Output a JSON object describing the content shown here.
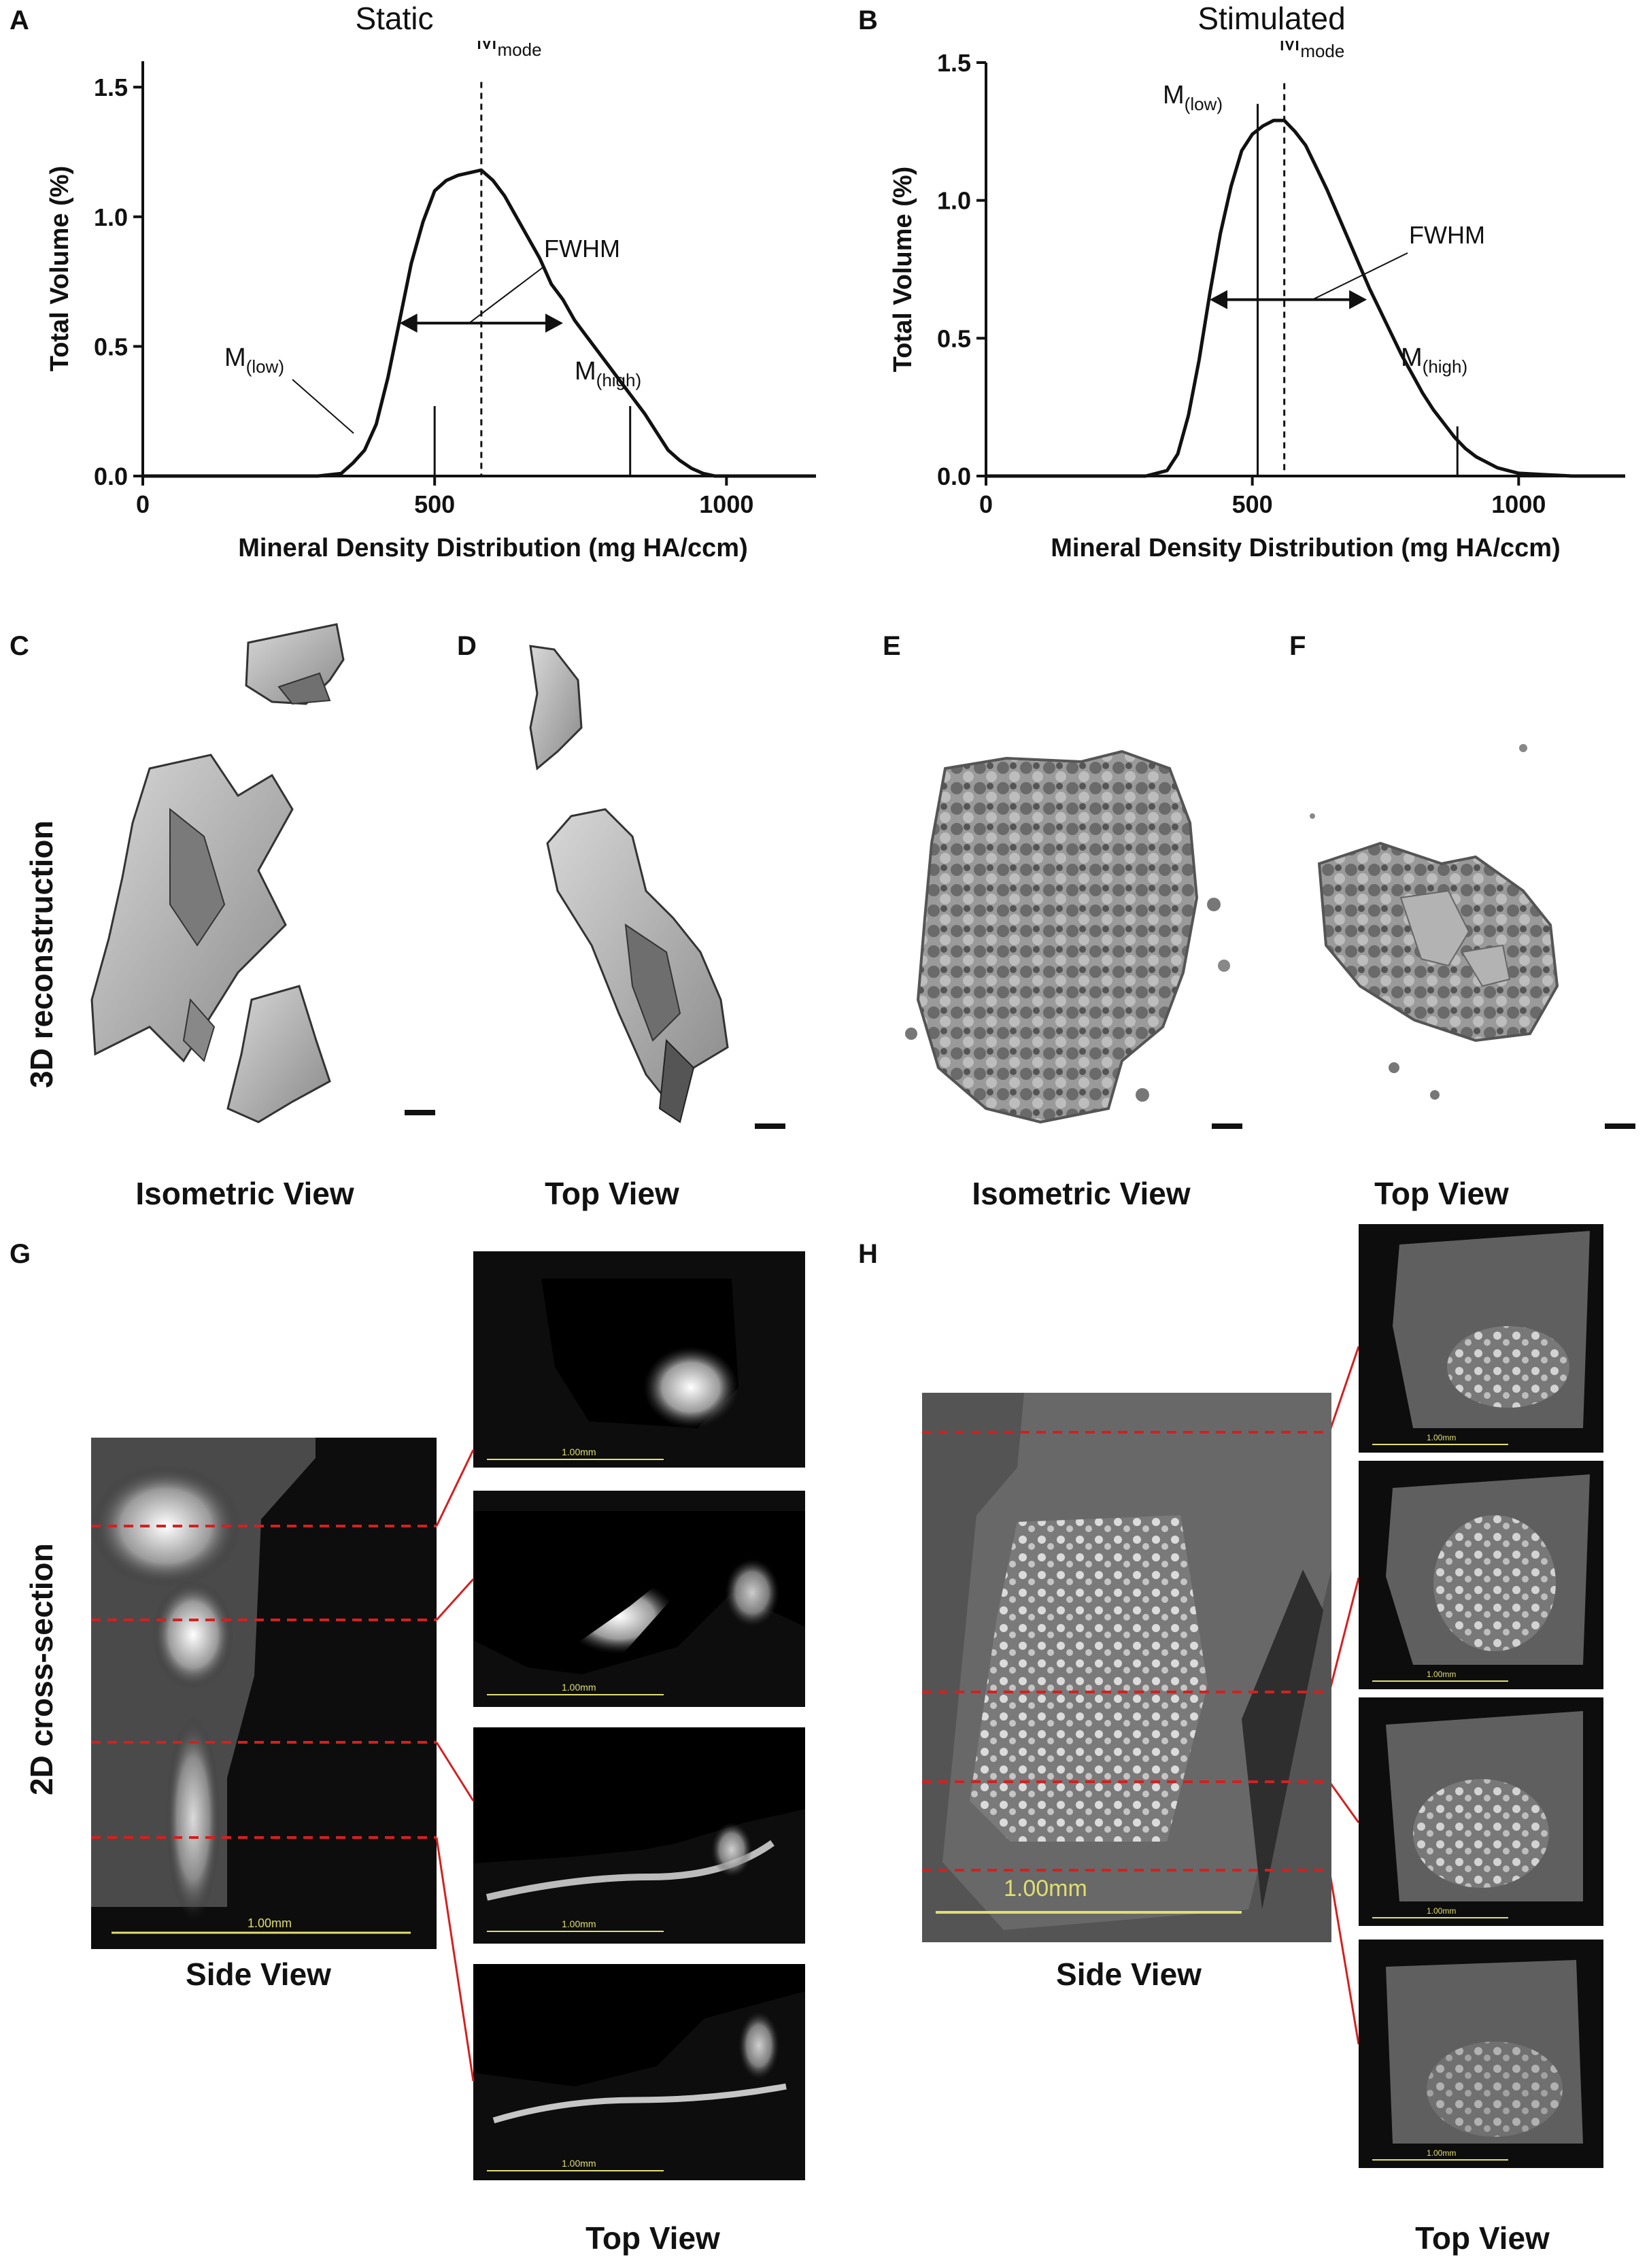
{
  "panels": {
    "A": "A",
    "B": "B",
    "C": "C",
    "D": "D",
    "E": "E",
    "F": "F",
    "G": "G",
    "H": "H"
  },
  "chart_data": [
    {
      "type": "line",
      "title": "Static",
      "xlabel": "Mineral Density Distribution (mg HA/ccm)",
      "ylabel": "Total Volume (%)",
      "xlim": [
        0,
        1200
      ],
      "ylim": [
        0,
        1.6
      ],
      "xticks": [
        0,
        500,
        1000
      ],
      "yticks": [
        0.0,
        0.5,
        1.0,
        1.5
      ],
      "x": [
        300,
        340,
        360,
        380,
        400,
        420,
        440,
        460,
        480,
        500,
        520,
        540,
        560,
        580,
        600,
        620,
        640,
        660,
        680,
        700,
        720,
        740,
        760,
        780,
        800,
        820,
        840,
        860,
        880,
        900,
        920,
        940,
        960,
        980,
        1000,
        1200
      ],
      "y": [
        0.0,
        0.01,
        0.05,
        0.1,
        0.2,
        0.38,
        0.6,
        0.82,
        0.98,
        1.1,
        1.14,
        1.16,
        1.17,
        1.18,
        1.14,
        1.08,
        1.0,
        0.92,
        0.84,
        0.74,
        0.68,
        0.6,
        0.54,
        0.48,
        0.42,
        0.36,
        0.3,
        0.24,
        0.17,
        0.1,
        0.06,
        0.03,
        0.01,
        0.0,
        0.0,
        0.0
      ],
      "annotations": {
        "mode": {
          "label": "M",
          "sub": "mode",
          "x": 580
        },
        "low": {
          "label": "M",
          "sub": "(low)",
          "x": 500,
          "y": 0.27
        },
        "high": {
          "label": "M",
          "sub": "(high)",
          "x": 835,
          "y": 0.27
        },
        "fwhm": {
          "label": "FWHM",
          "x1": 440,
          "x2": 720,
          "y": 0.59
        }
      }
    },
    {
      "type": "line",
      "title": "Stimulated",
      "xlabel": "Mineral Density Distribution (mg HA/ccm)",
      "ylabel": "Total Volume (%)",
      "xlim": [
        0,
        1200
      ],
      "ylim": [
        0,
        1.5
      ],
      "xticks": [
        0,
        500,
        1000
      ],
      "yticks": [
        0.0,
        0.5,
        1.0,
        1.5
      ],
      "x": [
        300,
        340,
        360,
        380,
        400,
        420,
        440,
        460,
        480,
        500,
        520,
        540,
        560,
        580,
        600,
        620,
        640,
        660,
        680,
        700,
        720,
        740,
        760,
        780,
        800,
        820,
        840,
        860,
        880,
        900,
        920,
        940,
        960,
        980,
        1000,
        1050,
        1100,
        1200
      ],
      "y": [
        0.0,
        0.02,
        0.08,
        0.22,
        0.42,
        0.66,
        0.88,
        1.05,
        1.18,
        1.24,
        1.27,
        1.29,
        1.29,
        1.25,
        1.2,
        1.12,
        1.04,
        0.95,
        0.86,
        0.77,
        0.68,
        0.6,
        0.52,
        0.44,
        0.37,
        0.3,
        0.24,
        0.19,
        0.14,
        0.1,
        0.07,
        0.05,
        0.03,
        0.02,
        0.01,
        0.005,
        0.0,
        0.0
      ],
      "annotations": {
        "mode": {
          "label": "M",
          "sub": "mode",
          "x": 560
        },
        "low": {
          "label": "M",
          "sub": "(low)",
          "x": 510,
          "y": 1.35
        },
        "high": {
          "label": "M",
          "sub": "(high)",
          "x": 885,
          "y": 0.18
        },
        "fwhm": {
          "label": "FWHM",
          "x1": 420,
          "x2": 715,
          "y": 0.64
        }
      }
    }
  ],
  "row_labels": {
    "recon": "3D reconstruction",
    "cross": "2D cross-section"
  },
  "captions": {
    "c": "Isometric View",
    "d": "Top View",
    "e": "Isometric View",
    "f": "Top View",
    "g_side": "Side View",
    "g_top": "Top View",
    "h_side": "Side View",
    "h_top": "Top View"
  },
  "scale_labels": {
    "small": "1.00mm",
    "large": "1.00mm"
  },
  "colors": {
    "line": "#111111",
    "guide": "#d42020",
    "scale_bar": "#e0df70"
  }
}
